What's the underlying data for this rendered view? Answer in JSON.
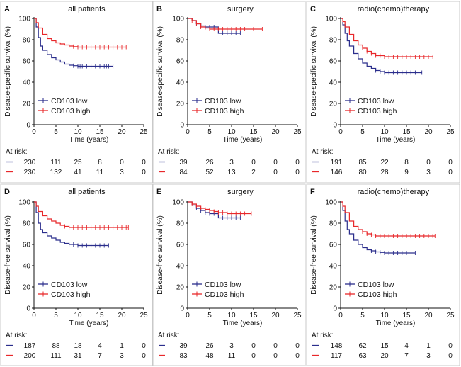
{
  "colors": {
    "low": "#2b2e8c",
    "high": "#e8282b",
    "axis": "#111111",
    "border": "#c9c9c9"
  },
  "chart_data": [
    {
      "type": "line",
      "panel": "A",
      "title": "all patients",
      "xlabel": "Time (years)",
      "ylabel": "Disease-specific survival (%)",
      "xlim": [
        0,
        25
      ],
      "ylim": [
        0,
        100
      ],
      "xticks": [
        0,
        5,
        10,
        15,
        20,
        25
      ],
      "yticks": [
        0,
        20,
        40,
        60,
        80,
        100
      ],
      "legend": [
        "CD103 low",
        "CD103 high"
      ],
      "series": [
        {
          "name": "CD103 low",
          "color": "#2b2e8c",
          "x": [
            0,
            0.5,
            1,
            1.5,
            2,
            3,
            4,
            5,
            6,
            7,
            8,
            9,
            10,
            12,
            14,
            16,
            18
          ],
          "y": [
            100,
            92,
            82,
            74,
            70,
            66,
            63,
            61,
            59,
            57,
            56,
            55.5,
            55,
            55,
            55,
            55,
            55
          ],
          "censor_x": [
            9,
            10,
            10.5,
            11,
            12,
            12.5,
            13,
            14,
            15,
            16,
            16.5,
            17,
            18
          ]
        },
        {
          "name": "CD103 high",
          "color": "#e8282b",
          "x": [
            0,
            0.5,
            1,
            2,
            3,
            4,
            5,
            6,
            7,
            8,
            9,
            10,
            12,
            15,
            18,
            21
          ],
          "y": [
            100,
            96,
            91,
            85,
            81,
            79,
            77,
            76,
            75,
            74,
            73.5,
            73,
            73,
            73,
            73,
            73
          ],
          "censor_x": [
            8,
            9,
            10,
            11,
            12,
            13,
            14,
            15,
            16,
            17,
            18,
            19,
            20,
            21
          ]
        }
      ],
      "risk": {
        "label": "At risk:",
        "rows": [
          [
            "230",
            "111",
            "25",
            "8",
            "0",
            "0"
          ],
          [
            "230",
            "132",
            "41",
            "11",
            "3",
            "0"
          ]
        ]
      }
    },
    {
      "type": "line",
      "panel": "B",
      "title": "surgery",
      "xlabel": "Time (years)",
      "ylabel": "Disease-specific survival (%)",
      "xlim": [
        0,
        25
      ],
      "ylim": [
        0,
        100
      ],
      "xticks": [
        0,
        5,
        10,
        15,
        20,
        25
      ],
      "yticks": [
        0,
        20,
        40,
        60,
        80,
        100
      ],
      "legend": [
        "CD103 low",
        "CD103 high"
      ],
      "series": [
        {
          "name": "CD103 low",
          "color": "#2b2e8c",
          "x": [
            0,
            1,
            2,
            3,
            4,
            5,
            6,
            7,
            8,
            10,
            12
          ],
          "y": [
            100,
            98,
            95,
            93,
            92,
            92,
            92,
            86,
            86,
            86,
            86
          ],
          "censor_x": [
            2,
            3,
            4,
            5,
            6,
            8,
            9,
            10,
            11,
            12
          ]
        },
        {
          "name": "CD103 high",
          "color": "#e8282b",
          "x": [
            0,
            1,
            2,
            3,
            4,
            5,
            7,
            9,
            12,
            15,
            17
          ],
          "y": [
            100,
            98,
            95,
            92,
            91,
            90,
            90,
            90,
            90,
            90,
            90
          ],
          "censor_x": [
            1,
            2,
            3,
            4,
            5,
            6,
            7,
            8,
            9,
            10,
            11,
            12,
            13,
            15,
            17
          ]
        }
      ],
      "risk": {
        "label": "At risk:",
        "rows": [
          [
            "39",
            "26",
            "3",
            "0",
            "0",
            "0"
          ],
          [
            "84",
            "52",
            "13",
            "2",
            "0",
            "0"
          ]
        ]
      }
    },
    {
      "type": "line",
      "panel": "C",
      "title": "radio(chemo)therapy",
      "xlabel": "Time (years)",
      "ylabel": "Disease-specific survival (%)",
      "xlim": [
        0,
        25
      ],
      "ylim": [
        0,
        100
      ],
      "xticks": [
        0,
        5,
        10,
        15,
        20,
        25
      ],
      "yticks": [
        0,
        20,
        40,
        60,
        80,
        100
      ],
      "legend": [
        "CD103 low",
        "CD103 high"
      ],
      "series": [
        {
          "name": "CD103 low",
          "color": "#2b2e8c",
          "x": [
            0,
            0.5,
            1,
            1.5,
            2,
            3,
            4,
            5,
            6,
            7,
            8,
            9,
            10,
            12,
            15,
            18.5
          ],
          "y": [
            100,
            94,
            86,
            79,
            74,
            67,
            62,
            58,
            55,
            53,
            51,
            50,
            49,
            49,
            49,
            49
          ],
          "censor_x": [
            8,
            9,
            10,
            11,
            12,
            13,
            14,
            15,
            16,
            17,
            18.5
          ]
        },
        {
          "name": "CD103 high",
          "color": "#e8282b",
          "x": [
            0,
            0.5,
            1,
            2,
            3,
            4,
            5,
            6,
            7,
            8,
            10,
            12,
            15,
            18,
            21
          ],
          "y": [
            100,
            97,
            92,
            85,
            79,
            75,
            72,
            69,
            67,
            65,
            64,
            64,
            64,
            64,
            64
          ],
          "censor_x": [
            5,
            6,
            7,
            8,
            9,
            10,
            11,
            12,
            13,
            14,
            15,
            16,
            17,
            18,
            19,
            20,
            21
          ]
        }
      ],
      "risk": {
        "label": "At risk:",
        "rows": [
          [
            "191",
            "85",
            "22",
            "8",
            "0",
            "0"
          ],
          [
            "146",
            "80",
            "28",
            "9",
            "3",
            "0"
          ]
        ]
      }
    },
    {
      "type": "line",
      "panel": "D",
      "title": "all patients",
      "xlabel": "Time (years)",
      "ylabel": "Disease-free survival (%)",
      "xlim": [
        0,
        25
      ],
      "ylim": [
        0,
        100
      ],
      "xticks": [
        0,
        5,
        10,
        15,
        20,
        25
      ],
      "yticks": [
        0,
        20,
        40,
        60,
        80,
        100
      ],
      "legend": [
        "CD103 low",
        "CD103 high"
      ],
      "series": [
        {
          "name": "CD103 low",
          "color": "#2b2e8c",
          "x": [
            0,
            0.5,
            1,
            1.5,
            2,
            3,
            4,
            5,
            6,
            7,
            8,
            9,
            10,
            12,
            14,
            17
          ],
          "y": [
            100,
            90,
            80,
            74,
            71,
            68,
            66,
            64,
            62,
            61,
            60,
            60,
            59,
            59,
            59,
            59
          ],
          "censor_x": [
            8,
            9,
            10,
            11,
            12,
            13,
            14,
            15,
            16,
            17
          ]
        },
        {
          "name": "CD103 high",
          "color": "#e8282b",
          "x": [
            0,
            0.5,
            1,
            2,
            3,
            4,
            5,
            6,
            7,
            8,
            10,
            12,
            15,
            18,
            21.5
          ],
          "y": [
            100,
            96,
            91,
            87,
            84,
            82,
            80,
            78,
            77,
            76,
            76,
            76,
            76,
            76,
            76
          ],
          "censor_x": [
            7,
            8,
            9,
            10,
            11,
            12,
            13,
            14,
            15,
            16,
            17,
            18,
            19,
            20,
            21,
            21.5
          ]
        }
      ],
      "risk": {
        "label": "At risk:",
        "rows": [
          [
            "187",
            "88",
            "18",
            "4",
            "1",
            "0"
          ],
          [
            "200",
            "111",
            "31",
            "7",
            "3",
            "0"
          ]
        ]
      }
    },
    {
      "type": "line",
      "panel": "E",
      "title": "surgery",
      "xlabel": "Time (years)",
      "ylabel": "Disease-free survival (%)",
      "xlim": [
        0,
        25
      ],
      "ylim": [
        0,
        100
      ],
      "xticks": [
        0,
        5,
        10,
        15,
        20,
        25
      ],
      "yticks": [
        0,
        20,
        40,
        60,
        80,
        100
      ],
      "legend": [
        "CD103 low",
        "CD103 high"
      ],
      "series": [
        {
          "name": "CD103 low",
          "color": "#2b2e8c",
          "x": [
            0,
            1,
            2,
            3,
            4,
            5,
            6,
            7,
            8,
            10,
            12
          ],
          "y": [
            100,
            97,
            94,
            92,
            90,
            89,
            89,
            85,
            85,
            85,
            85
          ],
          "censor_x": [
            2,
            3,
            4,
            5,
            6,
            8,
            9,
            10,
            11,
            12
          ]
        },
        {
          "name": "CD103 high",
          "color": "#e8282b",
          "x": [
            0,
            1,
            2,
            3,
            4,
            5,
            6,
            7,
            9,
            12,
            14.5
          ],
          "y": [
            100,
            98,
            96,
            94,
            93,
            92,
            91,
            90,
            89,
            89,
            89
          ],
          "censor_x": [
            1,
            2,
            3,
            4,
            5,
            6,
            7,
            8,
            9,
            10,
            11,
            12,
            13,
            14.5
          ]
        }
      ],
      "risk": {
        "label": "At risk:",
        "rows": [
          [
            "39",
            "26",
            "3",
            "0",
            "0",
            "0"
          ],
          [
            "83",
            "48",
            "11",
            "0",
            "0",
            "0"
          ]
        ]
      }
    },
    {
      "type": "line",
      "panel": "F",
      "title": "radio(chemo)therapy",
      "xlabel": "Time (years)",
      "ylabel": "Disease-free survival (%)",
      "xlim": [
        0,
        25
      ],
      "ylim": [
        0,
        100
      ],
      "xticks": [
        0,
        5,
        10,
        15,
        20,
        25
      ],
      "yticks": [
        0,
        20,
        40,
        60,
        80,
        100
      ],
      "legend": [
        "CD103 low",
        "CD103 high"
      ],
      "series": [
        {
          "name": "CD103 low",
          "color": "#2b2e8c",
          "x": [
            0,
            0.5,
            1,
            1.5,
            2,
            3,
            4,
            5,
            6,
            7,
            8,
            9,
            10,
            13,
            17
          ],
          "y": [
            100,
            92,
            82,
            74,
            70,
            64,
            60,
            57,
            55,
            54,
            53,
            52.5,
            52,
            52,
            52
          ],
          "censor_x": [
            7,
            8,
            9,
            10,
            11,
            12,
            13,
            14,
            15,
            17
          ]
        },
        {
          "name": "CD103 high",
          "color": "#e8282b",
          "x": [
            0,
            0.5,
            1,
            2,
            3,
            4,
            5,
            6,
            7,
            8,
            10,
            13,
            16,
            21.5
          ],
          "y": [
            100,
            96,
            90,
            82,
            77,
            74,
            72,
            70,
            69,
            68,
            68,
            68,
            68,
            68
          ],
          "censor_x": [
            5,
            6,
            7,
            8,
            9,
            10,
            11,
            12,
            13,
            14,
            15,
            16,
            17,
            18,
            19,
            20,
            21,
            21.5
          ]
        }
      ],
      "risk": {
        "label": "At risk:",
        "rows": [
          [
            "148",
            "62",
            "15",
            "4",
            "1",
            "0"
          ],
          [
            "117",
            "63",
            "20",
            "7",
            "3",
            "0"
          ]
        ]
      }
    }
  ]
}
